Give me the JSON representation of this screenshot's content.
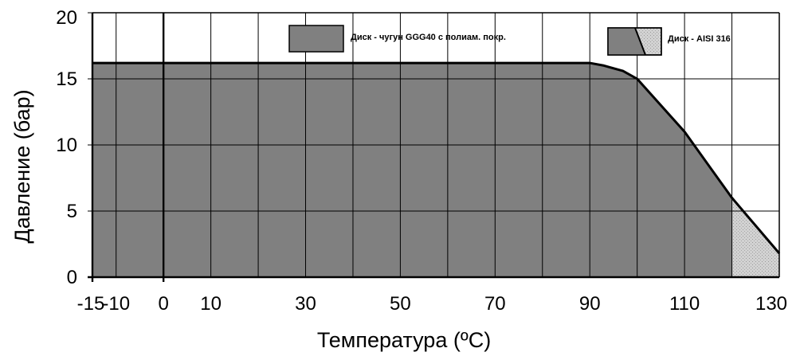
{
  "chart_data": {
    "type": "area",
    "xlabel": "Температура (ºC)",
    "ylabel": "Давление (бар)",
    "xlim": [
      -15,
      130
    ],
    "ylim": [
      0,
      20
    ],
    "x_ticks": [
      -15,
      -10,
      0,
      10,
      30,
      50,
      70,
      90,
      110,
      130
    ],
    "y_ticks": [
      0,
      5,
      10,
      15,
      20
    ],
    "x_grid": [
      -15,
      -10,
      0,
      10,
      20,
      30,
      40,
      50,
      60,
      70,
      80,
      90,
      100,
      110,
      120,
      130
    ],
    "y_grid": [
      0,
      5,
      10,
      15,
      20
    ],
    "grid": true,
    "legend_position": "top",
    "series": [
      {
        "name": "Диск - чугун GGG40 с полиам. покр.",
        "color": "#808080",
        "x": [
          -15,
          90,
          93,
          97,
          100,
          110,
          120
        ],
        "y": [
          16.2,
          16.2,
          16.0,
          15.6,
          15.0,
          11.0,
          6.0
        ]
      },
      {
        "name": "Диск - AISI 316",
        "color": "#c8c8c8",
        "x": [
          -15,
          90,
          93,
          97,
          100,
          110,
          120,
          130
        ],
        "y": [
          16.2,
          16.2,
          16.0,
          15.6,
          15.0,
          11.0,
          6.0,
          1.8
        ]
      }
    ]
  }
}
